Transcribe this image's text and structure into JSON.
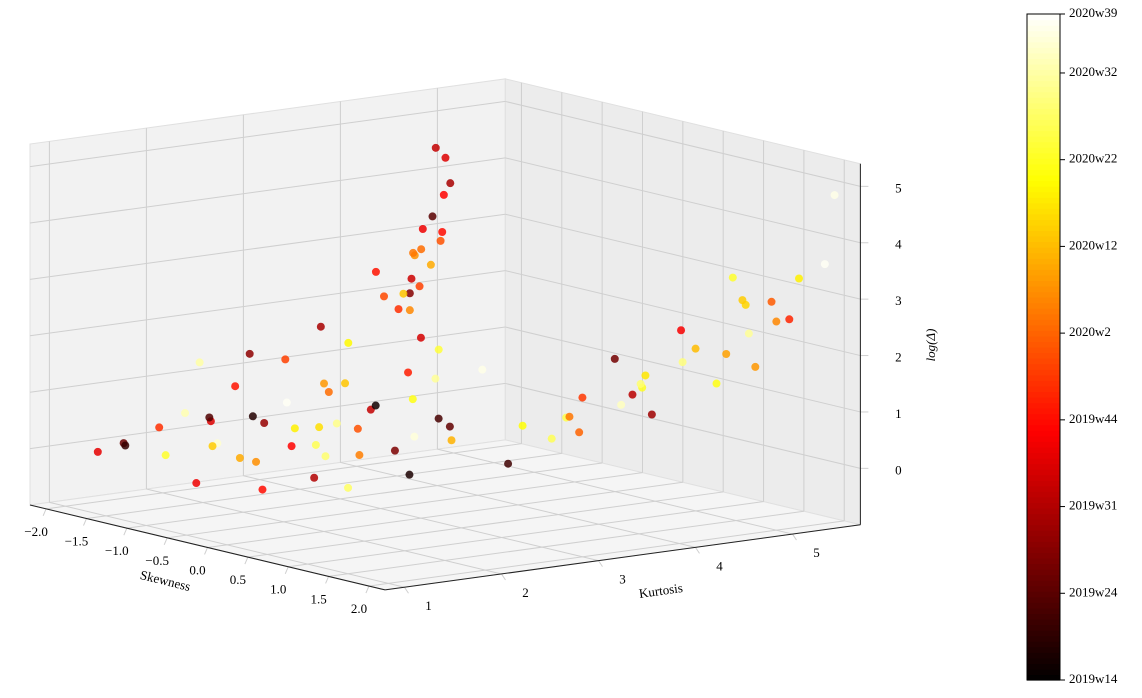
{
  "chart_data": {
    "type": "scatter3d",
    "xlabel": "Skewness",
    "ylabel": "Kurtosis",
    "zlabel": "log(Δ)",
    "xlim": [
      -2.2,
      2.2
    ],
    "ylim": [
      0.8,
      5.7
    ],
    "zlim": [
      -1,
      5.4
    ],
    "xticks": [
      {
        "value": -2,
        "label": "−2.0"
      },
      {
        "value": -1.5,
        "label": "−1.5"
      },
      {
        "value": -1,
        "label": "−1.0"
      },
      {
        "value": -0.5,
        "label": "−0.5"
      },
      {
        "value": 0,
        "label": "0.0"
      },
      {
        "value": 0.5,
        "label": "0.5"
      },
      {
        "value": 1,
        "label": "1.0"
      },
      {
        "value": 1.5,
        "label": "1.5"
      },
      {
        "value": 2,
        "label": "2.0"
      }
    ],
    "yticks": [
      1,
      2,
      3,
      4,
      5
    ],
    "zticks": [
      0,
      1,
      2,
      3,
      4,
      5
    ],
    "grid": true,
    "colormap": "hot",
    "clim": [
      0,
      7.68
    ],
    "cticks": [
      {
        "value": 0,
        "label": "2019w14"
      },
      {
        "value": 1,
        "label": "2019w24"
      },
      {
        "value": 2,
        "label": "2019w31"
      },
      {
        "value": 3,
        "label": "2019w44"
      },
      {
        "value": 4,
        "label": "2020w2"
      },
      {
        "value": 5,
        "label": "2020w12"
      },
      {
        "value": 6,
        "label": "2020w22"
      },
      {
        "value": 7,
        "label": "2020w32"
      },
      {
        "value": 7.68,
        "label": "2020w39"
      }
    ],
    "x": [
      -1.4,
      -1.2,
      -1.0,
      -0.8,
      -0.6,
      -0.4,
      -0.2,
      0,
      0.2,
      0.4,
      -1.3,
      -1.1,
      -0.9,
      -0.7,
      -0.5,
      -0.3,
      -0.1,
      0.1,
      0.3,
      0.5,
      -1.5,
      -1.0,
      -0.5,
      0,
      0.5,
      1.0,
      -1.2,
      -0.7,
      -0.2,
      0.3,
      0.6,
      0.8,
      1.0,
      1.2,
      -0.9,
      -0.4,
      0.1,
      0.7,
      1.1,
      -1.6,
      -1.3,
      -0.8,
      -0.3,
      0.2,
      0.9,
      1.3,
      -0.6,
      0,
      0.4,
      -1.0,
      1.5,
      1.8,
      1.6,
      2.0,
      1.4,
      1.9,
      1.7,
      1.2,
      1.8,
      2.1,
      1.6,
      1.3,
      1.9,
      2.0,
      1.5,
      1.7,
      1.1,
      1.8,
      2.0,
      1.6,
      1.9,
      1.4,
      2.1,
      1.7,
      1.8,
      2.0,
      1.5,
      1.9,
      2.1,
      1.2,
      -1.9,
      -1.8,
      -2.0,
      -1.7,
      -1.9,
      -1.8,
      -2.0,
      -1.6,
      -1.9,
      -1.8,
      -2.1,
      -1.7,
      -1.9,
      -1.8,
      -2.0,
      -1.9,
      -1.7,
      -1.8,
      -2.1,
      -1.9
    ],
    "y": [
      1.1,
      1.3,
      1.2,
      1.5,
      1.4,
      1.6,
      1.3,
      1.7,
      1.5,
      1.8,
      1.9,
      2.0,
      1.6,
      2.2,
      1.8,
      2.3,
      2.0,
      2.4,
      2.1,
      2.5,
      1.2,
      1.4,
      1.1,
      1.3,
      1.6,
      1.9,
      2.6,
      2.8,
      2.7,
      2.9,
      1.4,
      1.7,
      2.1,
      2.3,
      3.0,
      3.2,
      3.1,
      2.6,
      2.4,
      1.0,
      1.8,
      1.9,
      2.2,
      1.2,
      1.5,
      1.8,
      2.5,
      3.0,
      3.3,
      2.8,
      2.8,
      3.0,
      3.2,
      3.4,
      3.5,
      3.7,
      3.9,
      4.0,
      4.2,
      4.4,
      4.5,
      4.6,
      4.8,
      5.0,
      5.1,
      5.2,
      5.3,
      5.4,
      5.5,
      3.3,
      3.6,
      4.1,
      4.7,
      4.9,
      5.3,
      5.6,
      3.1,
      3.8,
      4.3,
      2.9,
      4.2,
      4.4,
      4.6,
      4.3,
      4.8,
      4.5,
      4.9,
      4.1,
      4.7,
      4.6,
      5.0,
      4.4,
      4.5,
      4.8,
      4.2,
      4.6,
      4.3,
      4.7,
      4.9,
      4.4
    ],
    "z": [
      0.3,
      0.6,
      0.2,
      0.8,
      0.5,
      1.0,
      0.4,
      0.9,
      0.7,
      1.1,
      0.6,
      1.2,
      0.3,
      1.0,
      0.8,
      1.3,
      0.5,
      1.1,
      0.9,
      1.4,
      0.2,
      0.9,
      -0.1,
      0.4,
      0.6,
      0.8,
      1.5,
      1.2,
      1.0,
      1.6,
      0.3,
      0.7,
      1.0,
      1.2,
      1.8,
      1.4,
      2.0,
      1.1,
      0.9,
      0.1,
      1.6,
      1.9,
      0.7,
      0.0,
      0.2,
      0.5,
      1.3,
      2.2,
      1.7,
      2.1,
      1.2,
      1.4,
      1.3,
      1.6,
      1.5,
      1.8,
      1.9,
      2.0,
      2.1,
      2.3,
      2.2,
      2.4,
      2.5,
      2.7,
      2.8,
      2.9,
      3.1,
      3.3,
      3.6,
      1.0,
      1.7,
      1.6,
      2.0,
      3.0,
      2.6,
      4.8,
      0.9,
      1.3,
      1.8,
      0.4,
      2.0,
      2.3,
      2.6,
      2.1,
      3.0,
      2.8,
      3.6,
      1.9,
      3.3,
      2.5,
      4.2,
      2.2,
      2.7,
      3.9,
      2.4,
      3.1,
      1.8,
      2.9,
      4.4,
      2.0
    ],
    "c": [
      1.2,
      3.4,
      6.1,
      2.5,
      7.3,
      0.4,
      4.8,
      5.6,
      2.9,
      6.8,
      0.9,
      3.1,
      5.2,
      7.6,
      1.7,
      4.1,
      6.4,
      2.2,
      3.8,
      5.9,
      0.6,
      7.1,
      2.7,
      4.5,
      6.6,
      1.4,
      3.6,
      5.1,
      0.2,
      6.9,
      2.0,
      4.3,
      7.4,
      1.1,
      5.7,
      3.2,
      6.2,
      0.8,
      4.9,
      2.6,
      7.0,
      1.6,
      5.4,
      3.0,
      6.5,
      0.3,
      4.6,
      2.4,
      7.5,
      1.9,
      5.8,
      6.3,
      4.2,
      7.2,
      3.5,
      6.0,
      5.5,
      1.3,
      6.7,
      4.7,
      5.0,
      2.8,
      6.9,
      4.4,
      5.3,
      3.9,
      6.1,
      5.6,
      7.6,
      4.0,
      2.1,
      6.6,
      4.6,
      5.2,
      3.3,
      7.5,
      6.4,
      1.8,
      5.9,
      0.7,
      3.7,
      2.3,
      4.5,
      1.5,
      3.0,
      4.1,
      2.9,
      3.4,
      1.0,
      4.8,
      2.5,
      3.6,
      4.2,
      1.9,
      3.1,
      2.7,
      4.4,
      3.8,
      2.2,
      5.1
    ]
  }
}
